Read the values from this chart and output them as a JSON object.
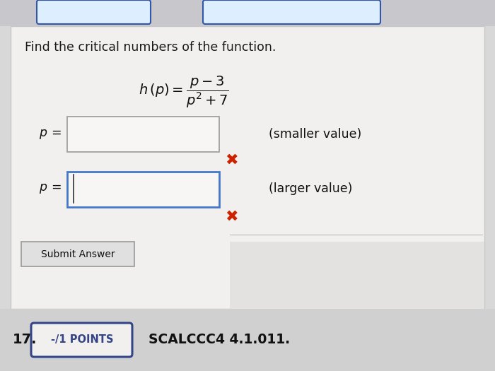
{
  "bg_color": "#d8d8d8",
  "panel_color": "#e8e8e8",
  "white_panel_color": "#f2f0ee",
  "white_panel_border": "#c8c8c8",
  "title_text": "Find the critical numbers of the function.",
  "formula_tex": "$h\\,(p) = \\dfrac{p - 3}{p^2 + 7}$",
  "label_p": "$p\\,=$",
  "hint1": "(smaller value)",
  "hint2": "(larger value)",
  "submit_text": "Submit Answer",
  "bottom_number": "17.",
  "points_text": "-/1 POINTS",
  "course_text": "SCALCCC4 4.1.011.",
  "input_box1_color": "#f8f6f4",
  "input_box1_border": "#999999",
  "input_box2_color": "#f8f6f4",
  "input_box2_border": "#4477cc",
  "x_color": "#cc2200",
  "points_box_border": "#334488",
  "points_text_color": "#334488",
  "submit_box_border": "#999999",
  "submit_box_color": "#e0e0e0",
  "top_boxes_color": "#3355aa",
  "top_boxes_fill": "#ddeeff"
}
